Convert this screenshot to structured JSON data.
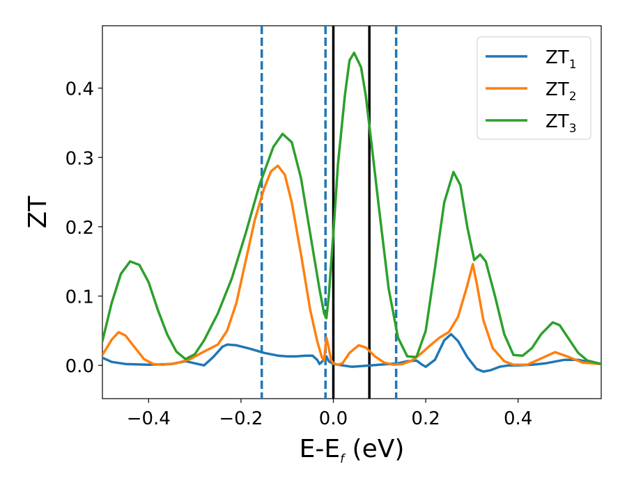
{
  "chart_data": {
    "type": "line",
    "xlabel": "E-E",
    "xlabel_sub": "f",
    "xlabel_unit": " (eV)",
    "ylabel": "ZT",
    "xlim": [
      -0.5,
      0.58
    ],
    "ylim": [
      -0.048,
      0.49
    ],
    "xticks": [
      -0.4,
      -0.2,
      0.0,
      0.2,
      0.4
    ],
    "xtick_labels": [
      "−0.4",
      "−0.2",
      "0.0",
      "0.2",
      "0.4"
    ],
    "yticks": [
      0.0,
      0.1,
      0.2,
      0.3,
      0.4
    ],
    "ytick_labels": [
      "0.0",
      "0.1",
      "0.2",
      "0.3",
      "0.4"
    ],
    "grid": false,
    "legend_position": "top-right",
    "series": [
      {
        "name": "ZT",
        "name_sub": "1",
        "color": "#1f77b4",
        "points": [
          [
            -0.5,
            0.011
          ],
          [
            -0.48,
            0.005
          ],
          [
            -0.45,
            0.002
          ],
          [
            -0.4,
            0.001
          ],
          [
            -0.35,
            0.002
          ],
          [
            -0.32,
            0.006
          ],
          [
            -0.3,
            0.003
          ],
          [
            -0.28,
            0.0
          ],
          [
            -0.26,
            0.012
          ],
          [
            -0.24,
            0.027
          ],
          [
            -0.23,
            0.03
          ],
          [
            -0.21,
            0.029
          ],
          [
            -0.18,
            0.024
          ],
          [
            -0.15,
            0.018
          ],
          [
            -0.12,
            0.014
          ],
          [
            -0.1,
            0.013
          ],
          [
            -0.08,
            0.013
          ],
          [
            -0.06,
            0.014
          ],
          [
            -0.045,
            0.014
          ],
          [
            -0.035,
            0.008
          ],
          [
            -0.03,
            0.002
          ],
          [
            -0.025,
            0.005
          ],
          [
            -0.02,
            0.009
          ],
          [
            -0.015,
            0.013
          ],
          [
            -0.01,
            0.006
          ],
          [
            0.0,
            0.002
          ],
          [
            0.02,
            0.0
          ],
          [
            0.04,
            -0.002
          ],
          [
            0.06,
            -0.001
          ],
          [
            0.08,
            0.0
          ],
          [
            0.1,
            0.001
          ],
          [
            0.12,
            0.002
          ],
          [
            0.14,
            0.003
          ],
          [
            0.16,
            0.006
          ],
          [
            0.18,
            0.007
          ],
          [
            0.19,
            0.002
          ],
          [
            0.2,
            -0.002
          ],
          [
            0.22,
            0.008
          ],
          [
            0.24,
            0.036
          ],
          [
            0.255,
            0.045
          ],
          [
            0.27,
            0.035
          ],
          [
            0.29,
            0.012
          ],
          [
            0.31,
            -0.005
          ],
          [
            0.325,
            -0.009
          ],
          [
            0.34,
            -0.007
          ],
          [
            0.36,
            -0.002
          ],
          [
            0.38,
            0.0
          ],
          [
            0.4,
            0.0
          ],
          [
            0.43,
            0.001
          ],
          [
            0.46,
            0.003
          ],
          [
            0.5,
            0.008
          ],
          [
            0.53,
            0.008
          ],
          [
            0.56,
            0.004
          ],
          [
            0.58,
            0.002
          ]
        ]
      },
      {
        "name": "ZT",
        "name_sub": "2",
        "color": "#ff7f0e",
        "points": [
          [
            -0.5,
            0.015
          ],
          [
            -0.48,
            0.037
          ],
          [
            -0.465,
            0.048
          ],
          [
            -0.45,
            0.043
          ],
          [
            -0.43,
            0.026
          ],
          [
            -0.41,
            0.009
          ],
          [
            -0.39,
            0.002
          ],
          [
            -0.37,
            0.001
          ],
          [
            -0.34,
            0.003
          ],
          [
            -0.31,
            0.009
          ],
          [
            -0.28,
            0.02
          ],
          [
            -0.25,
            0.03
          ],
          [
            -0.23,
            0.05
          ],
          [
            -0.21,
            0.09
          ],
          [
            -0.19,
            0.15
          ],
          [
            -0.17,
            0.21
          ],
          [
            -0.15,
            0.255
          ],
          [
            -0.135,
            0.28
          ],
          [
            -0.12,
            0.288
          ],
          [
            -0.105,
            0.275
          ],
          [
            -0.09,
            0.235
          ],
          [
            -0.07,
            0.16
          ],
          [
            -0.05,
            0.08
          ],
          [
            -0.035,
            0.035
          ],
          [
            -0.025,
            0.012
          ],
          [
            -0.02,
            0.007
          ],
          [
            -0.015,
            0.04
          ],
          [
            -0.01,
            0.025
          ],
          [
            -0.005,
            0.008
          ],
          [
            0.0,
            0.003
          ],
          [
            0.01,
            0.001
          ],
          [
            0.02,
            0.003
          ],
          [
            0.035,
            0.018
          ],
          [
            0.055,
            0.029
          ],
          [
            0.07,
            0.026
          ],
          [
            0.09,
            0.013
          ],
          [
            0.11,
            0.004
          ],
          [
            0.13,
            0.001
          ],
          [
            0.15,
            0.002
          ],
          [
            0.17,
            0.007
          ],
          [
            0.19,
            0.017
          ],
          [
            0.21,
            0.029
          ],
          [
            0.23,
            0.04
          ],
          [
            0.25,
            0.048
          ],
          [
            0.27,
            0.07
          ],
          [
            0.29,
            0.115
          ],
          [
            0.302,
            0.146
          ],
          [
            0.31,
            0.12
          ],
          [
            0.325,
            0.065
          ],
          [
            0.345,
            0.025
          ],
          [
            0.37,
            0.006
          ],
          [
            0.39,
            0.001
          ],
          [
            0.42,
            0.001
          ],
          [
            0.45,
            0.01
          ],
          [
            0.48,
            0.019
          ],
          [
            0.51,
            0.012
          ],
          [
            0.54,
            0.004
          ],
          [
            0.58,
            0.002
          ]
        ]
      },
      {
        "name": "ZT",
        "name_sub": "3",
        "color": "#2ca02c",
        "points": [
          [
            -0.5,
            0.035
          ],
          [
            -0.48,
            0.09
          ],
          [
            -0.46,
            0.132
          ],
          [
            -0.44,
            0.15
          ],
          [
            -0.42,
            0.145
          ],
          [
            -0.4,
            0.12
          ],
          [
            -0.38,
            0.08
          ],
          [
            -0.36,
            0.045
          ],
          [
            -0.34,
            0.02
          ],
          [
            -0.32,
            0.009
          ],
          [
            -0.3,
            0.016
          ],
          [
            -0.28,
            0.036
          ],
          [
            -0.25,
            0.075
          ],
          [
            -0.22,
            0.125
          ],
          [
            -0.19,
            0.19
          ],
          [
            -0.16,
            0.26
          ],
          [
            -0.13,
            0.315
          ],
          [
            -0.11,
            0.334
          ],
          [
            -0.09,
            0.322
          ],
          [
            -0.07,
            0.27
          ],
          [
            -0.05,
            0.19
          ],
          [
            -0.03,
            0.11
          ],
          [
            -0.02,
            0.075
          ],
          [
            -0.015,
            0.068
          ],
          [
            -0.01,
            0.1
          ],
          [
            0.0,
            0.19
          ],
          [
            0.01,
            0.29
          ],
          [
            0.025,
            0.39
          ],
          [
            0.035,
            0.44
          ],
          [
            0.045,
            0.451
          ],
          [
            0.06,
            0.43
          ],
          [
            0.07,
            0.39
          ],
          [
            0.08,
            0.335
          ],
          [
            0.1,
            0.22
          ],
          [
            0.12,
            0.11
          ],
          [
            0.14,
            0.04
          ],
          [
            0.16,
            0.013
          ],
          [
            0.18,
            0.012
          ],
          [
            0.2,
            0.05
          ],
          [
            0.22,
            0.14
          ],
          [
            0.24,
            0.235
          ],
          [
            0.26,
            0.279
          ],
          [
            0.275,
            0.26
          ],
          [
            0.29,
            0.2
          ],
          [
            0.305,
            0.152
          ],
          [
            0.318,
            0.16
          ],
          [
            0.33,
            0.15
          ],
          [
            0.35,
            0.1
          ],
          [
            0.37,
            0.045
          ],
          [
            0.39,
            0.015
          ],
          [
            0.41,
            0.014
          ],
          [
            0.43,
            0.025
          ],
          [
            0.45,
            0.045
          ],
          [
            0.475,
            0.062
          ],
          [
            0.49,
            0.058
          ],
          [
            0.51,
            0.038
          ],
          [
            0.53,
            0.018
          ],
          [
            0.55,
            0.007
          ],
          [
            0.58,
            0.002
          ]
        ]
      }
    ],
    "vlines": [
      {
        "x": -0.155,
        "color": "#1f77b4",
        "style": "dashed"
      },
      {
        "x": -0.017,
        "color": "#1f77b4",
        "style": "dashed"
      },
      {
        "x": 0.0,
        "color": "#000000",
        "style": "solid"
      },
      {
        "x": 0.078,
        "color": "#000000",
        "style": "solid"
      },
      {
        "x": 0.136,
        "color": "#1f77b4",
        "style": "dashed"
      }
    ]
  }
}
